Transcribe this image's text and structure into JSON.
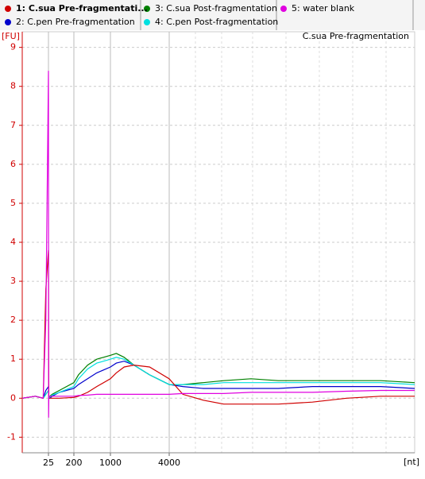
{
  "chart_data": {
    "type": "line",
    "annotation": "C.sua Pre-fragmentation",
    "y_label": "[FU]",
    "x_label": "[nt]",
    "x": [
      15,
      20,
      23,
      24,
      25,
      26,
      28,
      35,
      50,
      100,
      200,
      300,
      500,
      700,
      1000,
      1300,
      1700,
      2200,
      3000,
      4000,
      6000,
      9000,
      12000,
      16000,
      20000,
      25000,
      30000,
      35000,
      40000
    ],
    "series": [
      {
        "name": "2: C.pen Pre-fragmentation",
        "color": "#0000cc",
        "values": [
          0,
          0.05,
          0,
          0.2,
          0.3,
          0.1,
          0,
          0,
          0.05,
          0.15,
          0.25,
          0.35,
          0.5,
          0.65,
          0.8,
          0.9,
          0.95,
          0.85,
          0.6,
          0.35,
          0.3,
          0.25,
          0.25,
          0.25,
          0.25,
          0.3,
          0.3,
          0.3,
          0.25
        ]
      },
      {
        "name": "3: C.sua Post-fragmentation",
        "color": "#008000",
        "values": [
          0,
          0.05,
          0,
          0.1,
          0.2,
          0.05,
          0,
          0.05,
          0.1,
          0.2,
          0.4,
          0.6,
          0.85,
          1.0,
          1.1,
          1.15,
          1.05,
          0.85,
          0.6,
          0.35,
          0.35,
          0.4,
          0.45,
          0.5,
          0.45,
          0.45,
          0.45,
          0.45,
          0.4
        ]
      },
      {
        "name": "4: C.pen Post-fragmentation",
        "color": "#00e0e0",
        "values": [
          0,
          0.05,
          0,
          0.1,
          0.2,
          0.05,
          0,
          0.03,
          0.08,
          0.15,
          0.3,
          0.5,
          0.75,
          0.9,
          1.0,
          1.05,
          1.0,
          0.85,
          0.6,
          0.35,
          0.35,
          0.35,
          0.4,
          0.4,
          0.4,
          0.4,
          0.4,
          0.4,
          0.35
        ]
      },
      {
        "name": "1: C.sua Pre-fragmentati...",
        "color": "#d00000",
        "values": [
          0,
          0.05,
          0,
          2.8,
          3.8,
          1.5,
          0,
          0,
          0,
          0,
          0.02,
          0.05,
          0.15,
          0.3,
          0.5,
          0.65,
          0.8,
          0.85,
          0.8,
          0.5,
          0.1,
          -0.05,
          -0.15,
          -0.15,
          -0.15,
          -0.1,
          0,
          0.05,
          0.05
        ]
      },
      {
        "name": "5: water blank",
        "color": "#e000e0",
        "values": [
          0,
          0.05,
          0,
          2,
          8.4,
          -0.5,
          0.05,
          0.05,
          0.05,
          0.05,
          0.05,
          0.07,
          0.08,
          0.1,
          0.1,
          0.1,
          0.1,
          0.1,
          0.1,
          0.1,
          0.12,
          0.12,
          0.12,
          0.15,
          0.15,
          0.15,
          0.18,
          0.2,
          0.2
        ]
      }
    ],
    "xlim": [
      15,
      40000
    ],
    "xticks": [
      25,
      200,
      1000,
      4000
    ],
    "ylim": [
      -1.4,
      9.4
    ],
    "yticks": [
      -1,
      0,
      1,
      2,
      3,
      4,
      5,
      6,
      7,
      8,
      9
    ],
    "grid": true
  }
}
